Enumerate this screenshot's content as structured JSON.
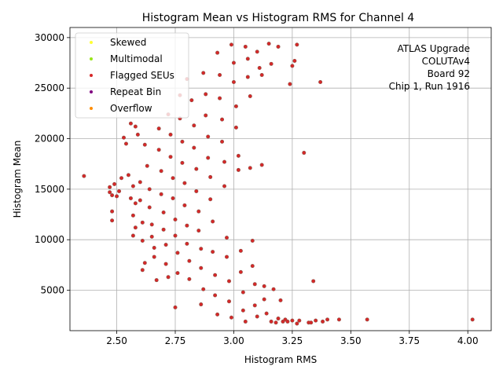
{
  "chart_data": {
    "type": "scatter",
    "title": "Histogram Mean vs Histogram RMS for Channel 4",
    "xlabel": "Histogram RMS",
    "ylabel": "Histogram Mean",
    "xlim": [
      2.3,
      4.1
    ],
    "ylim": [
      1000,
      31000
    ],
    "xticks": [
      2.5,
      2.75,
      3.0,
      3.25,
      3.5,
      3.75,
      4.0
    ],
    "xtick_labels": [
      "2.50",
      "2.75",
      "3.00",
      "3.25",
      "3.50",
      "3.75",
      "4.00"
    ],
    "yticks": [
      5000,
      10000,
      15000,
      20000,
      25000,
      30000
    ],
    "ytick_labels": [
      "5000",
      "10000",
      "15000",
      "20000",
      "25000",
      "30000"
    ],
    "grid": true,
    "legend_position": "top-left",
    "annotation_lines": [
      "ATLAS Upgrade",
      "COLUTAv4",
      "Board 92",
      "Chip 1, Run 1916"
    ],
    "series": [
      {
        "name": "Skewed",
        "color": "#ffff33",
        "points": []
      },
      {
        "name": "Multimodal",
        "color": "#99e619",
        "points": []
      },
      {
        "name": "Flagged SEUs",
        "color": "#d62728",
        "edge_color": "#8c564b",
        "points": [
          [
            2.36,
            16300
          ],
          [
            2.47,
            15200
          ],
          [
            2.48,
            14400
          ],
          [
            2.47,
            14700
          ],
          [
            2.48,
            12800
          ],
          [
            2.48,
            11900
          ],
          [
            2.49,
            15500
          ],
          [
            2.5,
            14300
          ],
          [
            2.51,
            14800
          ],
          [
            2.52,
            16100
          ],
          [
            2.53,
            20100
          ],
          [
            2.55,
            16400
          ],
          [
            2.54,
            19500
          ],
          [
            2.56,
            21500
          ],
          [
            2.57,
            15300
          ],
          [
            2.56,
            14100
          ],
          [
            2.57,
            12400
          ],
          [
            2.58,
            13600
          ],
          [
            2.58,
            11200
          ],
          [
            2.57,
            10400
          ],
          [
            2.58,
            21200
          ],
          [
            2.59,
            20400
          ],
          [
            2.6,
            15700
          ],
          [
            2.6,
            13900
          ],
          [
            2.61,
            11700
          ],
          [
            2.61,
            9900
          ],
          [
            2.62,
            7700
          ],
          [
            2.61,
            7000
          ],
          [
            2.62,
            19400
          ],
          [
            2.63,
            17300
          ],
          [
            2.64,
            15000
          ],
          [
            2.64,
            13200
          ],
          [
            2.65,
            11500
          ],
          [
            2.65,
            10300
          ],
          [
            2.66,
            9200
          ],
          [
            2.66,
            8300
          ],
          [
            2.67,
            6000
          ],
          [
            2.68,
            21000
          ],
          [
            2.68,
            18900
          ],
          [
            2.69,
            16800
          ],
          [
            2.69,
            14500
          ],
          [
            2.7,
            12700
          ],
          [
            2.7,
            11000
          ],
          [
            2.71,
            9500
          ],
          [
            2.71,
            7600
          ],
          [
            2.72,
            6300
          ],
          [
            2.72,
            22400
          ],
          [
            2.73,
            20400
          ],
          [
            2.73,
            18200
          ],
          [
            2.74,
            16100
          ],
          [
            2.74,
            14100
          ],
          [
            2.75,
            12000
          ],
          [
            2.75,
            10400
          ],
          [
            2.76,
            8700
          ],
          [
            2.76,
            6700
          ],
          [
            2.75,
            3300
          ],
          [
            2.77,
            24300
          ],
          [
            2.77,
            22000
          ],
          [
            2.78,
            19700
          ],
          [
            2.78,
            17600
          ],
          [
            2.79,
            15600
          ],
          [
            2.79,
            13400
          ],
          [
            2.8,
            11400
          ],
          [
            2.8,
            9600
          ],
          [
            2.81,
            7900
          ],
          [
            2.81,
            6100
          ],
          [
            2.8,
            25900
          ],
          [
            2.82,
            23800
          ],
          [
            2.83,
            21300
          ],
          [
            2.83,
            19100
          ],
          [
            2.84,
            17000
          ],
          [
            2.84,
            14800
          ],
          [
            2.85,
            12800
          ],
          [
            2.85,
            10900
          ],
          [
            2.86,
            9100
          ],
          [
            2.86,
            7200
          ],
          [
            2.87,
            5100
          ],
          [
            2.86,
            3600
          ],
          [
            2.87,
            26500
          ],
          [
            2.88,
            24400
          ],
          [
            2.88,
            22300
          ],
          [
            2.89,
            20200
          ],
          [
            2.89,
            18100
          ],
          [
            2.9,
            16200
          ],
          [
            2.9,
            14000
          ],
          [
            2.91,
            11800
          ],
          [
            2.91,
            8800
          ],
          [
            2.92,
            6500
          ],
          [
            2.92,
            4500
          ],
          [
            2.93,
            2600
          ],
          [
            2.93,
            28500
          ],
          [
            2.94,
            26300
          ],
          [
            2.94,
            24000
          ],
          [
            2.95,
            21900
          ],
          [
            2.95,
            19700
          ],
          [
            2.96,
            17700
          ],
          [
            2.96,
            15300
          ],
          [
            2.97,
            10200
          ],
          [
            2.97,
            8300
          ],
          [
            2.98,
            5900
          ],
          [
            2.98,
            3900
          ],
          [
            2.99,
            2300
          ],
          [
            2.99,
            29300
          ],
          [
            3.0,
            27500
          ],
          [
            3.0,
            25600
          ],
          [
            3.01,
            23200
          ],
          [
            3.01,
            21100
          ],
          [
            3.02,
            18300
          ],
          [
            3.02,
            16900
          ],
          [
            3.03,
            8900
          ],
          [
            3.03,
            6800
          ],
          [
            3.04,
            4800
          ],
          [
            3.04,
            3000
          ],
          [
            3.05,
            1900
          ],
          [
            3.05,
            29100
          ],
          [
            3.06,
            27900
          ],
          [
            3.06,
            26100
          ],
          [
            3.07,
            24200
          ],
          [
            3.07,
            17100
          ],
          [
            3.08,
            9900
          ],
          [
            3.08,
            7400
          ],
          [
            3.09,
            5600
          ],
          [
            3.09,
            3500
          ],
          [
            3.1,
            2400
          ],
          [
            3.1,
            28600
          ],
          [
            3.11,
            27000
          ],
          [
            3.12,
            26300
          ],
          [
            3.12,
            17400
          ],
          [
            3.13,
            5400
          ],
          [
            3.13,
            4100
          ],
          [
            3.14,
            2700
          ],
          [
            3.15,
            29400
          ],
          [
            3.16,
            27400
          ],
          [
            3.16,
            1900
          ],
          [
            3.17,
            5100
          ],
          [
            3.18,
            1800
          ],
          [
            3.19,
            29100
          ],
          [
            3.19,
            2200
          ],
          [
            3.2,
            4000
          ],
          [
            3.21,
            1900
          ],
          [
            3.22,
            2100
          ],
          [
            3.23,
            1900
          ],
          [
            3.24,
            25400
          ],
          [
            3.25,
            27200
          ],
          [
            3.25,
            2000
          ],
          [
            3.26,
            27700
          ],
          [
            3.27,
            29300
          ],
          [
            3.27,
            1700
          ],
          [
            3.28,
            2000
          ],
          [
            3.3,
            18600
          ],
          [
            3.32,
            1800
          ],
          [
            3.33,
            1800
          ],
          [
            3.34,
            5900
          ],
          [
            3.35,
            2000
          ],
          [
            3.37,
            25600
          ],
          [
            3.38,
            1900
          ],
          [
            3.4,
            2100
          ],
          [
            3.45,
            2100
          ],
          [
            3.57,
            2100
          ],
          [
            4.02,
            2100
          ]
        ]
      },
      {
        "name": "Repeat Bin",
        "color": "#800080",
        "points": []
      },
      {
        "name": "Overflow",
        "color": "#ff8c00",
        "points": []
      }
    ]
  }
}
